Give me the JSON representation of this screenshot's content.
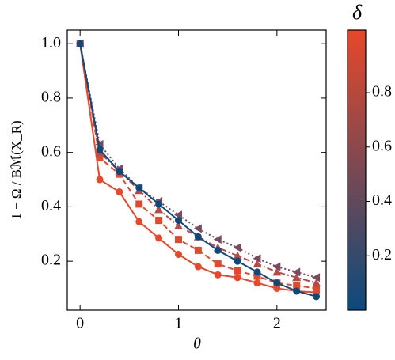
{
  "chart_data": {
    "type": "line",
    "x_label": "θ",
    "y_label": "1 − Ω / Bℳ(X_R)",
    "x": [
      0,
      0.2,
      0.4,
      0.6,
      0.8,
      1.0,
      1.2,
      1.4,
      1.6,
      1.8,
      2.0,
      2.2,
      2.4
    ],
    "xlim": [
      -0.13,
      2.5
    ],
    "xticks": [
      0,
      1,
      2
    ],
    "ylim": [
      0.02,
      1.05
    ],
    "yticks": [
      0.2,
      0.4,
      0.6,
      0.8,
      {
        "value": 1,
        "label": "1.0"
      }
    ],
    "series": [
      {
        "color": "#e8472a",
        "marker": "circle",
        "linestyle": "solid",
        "values": [
          1.0,
          0.5,
          0.455,
          0.345,
          0.285,
          0.225,
          0.18,
          0.15,
          0.14,
          0.12,
          0.1,
          0.09,
          0.085
        ]
      },
      {
        "color": "#df4a2f",
        "marker": "square",
        "linestyle": "dashed",
        "values": [
          1.0,
          0.58,
          0.52,
          0.41,
          0.35,
          0.28,
          0.24,
          0.19,
          0.165,
          0.145,
          0.12,
          0.11,
          0.1
        ]
      },
      {
        "color": "#b44a48",
        "marker": "triangle-up",
        "linestyle": "dashdot",
        "values": [
          1.0,
          0.6,
          0.53,
          0.46,
          0.39,
          0.33,
          0.29,
          0.25,
          0.22,
          0.19,
          0.16,
          0.14,
          0.12
        ]
      },
      {
        "color": "#7a4a5e",
        "marker": "triangle-left",
        "linestyle": "dotted",
        "values": [
          1.0,
          0.63,
          0.54,
          0.47,
          0.42,
          0.37,
          0.32,
          0.28,
          0.25,
          0.21,
          0.18,
          0.16,
          0.14
        ]
      },
      {
        "color": "#0d4a7a",
        "marker": "circle",
        "linestyle": "solid",
        "values": [
          1.0,
          0.61,
          0.53,
          0.47,
          0.41,
          0.35,
          0.29,
          0.24,
          0.2,
          0.16,
          0.12,
          0.09,
          0.07
        ]
      }
    ],
    "colorbar": {
      "label": "δ",
      "lim": [
        0,
        1.03
      ],
      "ticks": [
        0.2,
        0.4,
        0.6,
        0.8
      ],
      "colors": [
        "#0b4a7c",
        "#e8472a"
      ]
    }
  }
}
